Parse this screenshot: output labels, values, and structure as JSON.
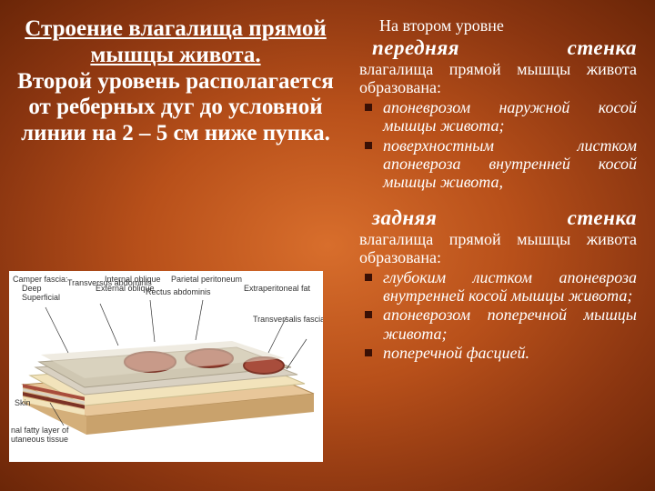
{
  "slide": {
    "background_gradient": [
      "#d86e2c",
      "#b8501a",
      "#8a3510",
      "#6b2608"
    ],
    "left": {
      "title_underlined": "Строение влагалища прямой мышцы живота.",
      "title_rest": "Второй уровень располагается от реберных дуг до условной линии на 2 – 5 см ниже пупка."
    },
    "right": {
      "intro": "На втором уровне",
      "section1_a": "передняя",
      "section1_b": "стенка",
      "section1_after": "влагалища прямой мышцы живота образована:",
      "list1": [
        "апоневрозом наружной косой мышцы живота;",
        "поверхностным листком апоневроза внутренней косой мышцы живота,"
      ],
      "section2_a": "задняя",
      "section2_b": "стенка",
      "section2_after": "влагалища прямой мышцы живота образована:",
      "list2": [
        "глубоким листком апоневроза внутренней косой мышцы живота;",
        "апоневрозом поперечной мышцы живота;",
        "поперечной фасцией."
      ]
    },
    "diagram": {
      "caption_labels": [
        "Camper fascia:",
        "Deep",
        "Superficial",
        "Transversus abdominis",
        "Internal oblique",
        "External oblique",
        "Parietal peritoneum",
        "Extraperitoneal fat",
        "Transversalis fascia",
        "Rectus abdominis",
        "Skin",
        "nal fatty layer of",
        "utaneous tissue"
      ],
      "layer_colors": {
        "skin": "#e8c79a",
        "fat": "#f2e3bb",
        "aponeurosis": "#d9d1c2",
        "muscle": "#a84d3c",
        "muscle_dark": "#7c3326",
        "fascia": "#bfb7a1",
        "peritoneum": "#cfc7b2"
      }
    }
  }
}
